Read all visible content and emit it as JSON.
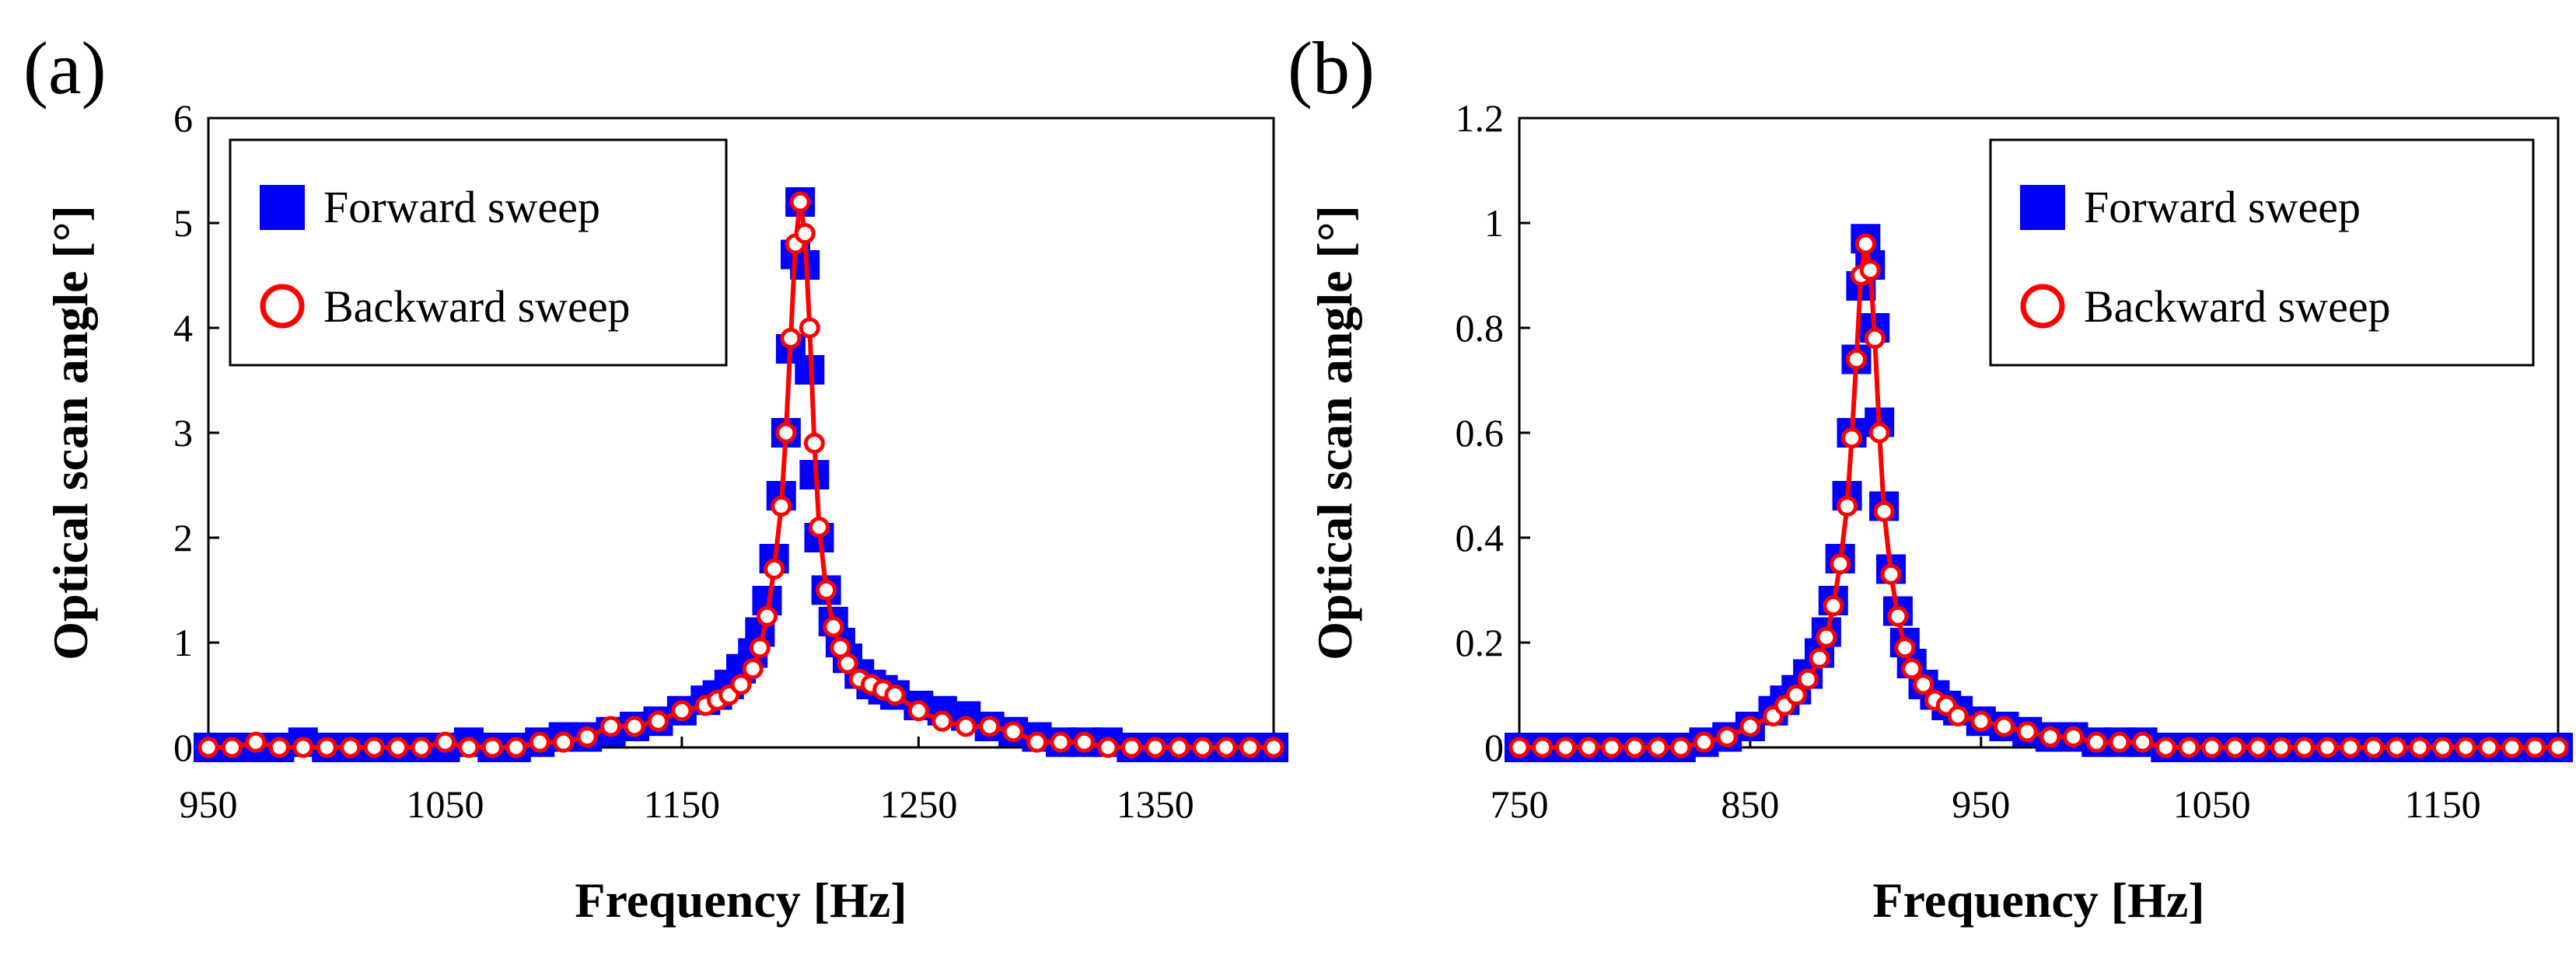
{
  "chart_data": [
    {
      "type": "scatter",
      "panel_label": "(a)",
      "xlabel": "Frequency [Hz]",
      "ylabel": "Optical scan angle [°]",
      "xlim": [
        950,
        1400
      ],
      "ylim": [
        0,
        6
      ],
      "xticks": [
        "950",
        "1050",
        "1150",
        "1250",
        "1350"
      ],
      "xtick_values": [
        950,
        1050,
        1150,
        1250,
        1350
      ],
      "yticks": [
        "0",
        "1",
        "2",
        "3",
        "4",
        "5",
        "6"
      ],
      "ytick_values": [
        0,
        1,
        2,
        3,
        4,
        5,
        6
      ],
      "legend_position": "top-left",
      "series": [
        {
          "name": "Forward sweep",
          "marker": "square",
          "color": "#0000ff",
          "x": [
            950,
            960,
            970,
            980,
            990,
            1000,
            1010,
            1020,
            1030,
            1040,
            1050,
            1060,
            1070,
            1080,
            1090,
            1100,
            1110,
            1120,
            1130,
            1140,
            1150,
            1160,
            1165,
            1170,
            1175,
            1180,
            1183,
            1186,
            1189,
            1192,
            1194,
            1196,
            1198,
            1200,
            1202,
            1204,
            1206,
            1208,
            1211,
            1214,
            1217,
            1220,
            1225,
            1230,
            1235,
            1240,
            1250,
            1260,
            1270,
            1280,
            1290,
            1300,
            1310,
            1320,
            1330,
            1340,
            1350,
            1360,
            1370,
            1380,
            1390,
            1400
          ],
          "y": [
            0,
            0,
            0,
            0,
            0.05,
            0,
            0,
            0,
            0,
            0,
            0,
            0.05,
            0,
            0,
            0.05,
            0.1,
            0.1,
            0.15,
            0.2,
            0.25,
            0.35,
            0.45,
            0.5,
            0.6,
            0.75,
            0.9,
            1.1,
            1.4,
            1.8,
            2.4,
            3.0,
            3.8,
            4.7,
            5.2,
            4.6,
            3.6,
            2.6,
            2.0,
            1.5,
            1.2,
            1.0,
            0.85,
            0.7,
            0.6,
            0.55,
            0.5,
            0.4,
            0.35,
            0.3,
            0.2,
            0.15,
            0.1,
            0.05,
            0.05,
            0.05,
            0,
            0,
            0,
            0,
            0,
            0,
            0
          ]
        },
        {
          "name": "Backward sweep",
          "marker": "circle",
          "color": "#ff0000",
          "x": [
            950,
            960,
            970,
            980,
            990,
            1000,
            1010,
            1020,
            1030,
            1040,
            1050,
            1060,
            1070,
            1080,
            1090,
            1100,
            1110,
            1120,
            1130,
            1140,
            1150,
            1160,
            1165,
            1170,
            1175,
            1180,
            1183,
            1186,
            1189,
            1192,
            1194,
            1196,
            1198,
            1200,
            1202,
            1204,
            1206,
            1208,
            1211,
            1214,
            1217,
            1220,
            1225,
            1230,
            1235,
            1240,
            1250,
            1260,
            1270,
            1280,
            1290,
            1300,
            1310,
            1320,
            1330,
            1340,
            1350,
            1360,
            1370,
            1380,
            1390,
            1400
          ],
          "y": [
            0,
            0,
            0.05,
            0,
            0,
            0,
            0,
            0,
            0,
            0,
            0.05,
            0,
            0,
            0,
            0.05,
            0.05,
            0.1,
            0.2,
            0.2,
            0.25,
            0.35,
            0.4,
            0.45,
            0.5,
            0.6,
            0.75,
            0.95,
            1.25,
            1.7,
            2.3,
            3.0,
            3.9,
            4.8,
            5.2,
            4.9,
            4.0,
            2.9,
            2.1,
            1.5,
            1.15,
            0.95,
            0.8,
            0.65,
            0.6,
            0.55,
            0.5,
            0.35,
            0.25,
            0.2,
            0.2,
            0.15,
            0.05,
            0.05,
            0.05,
            0,
            0,
            0,
            0,
            0,
            0,
            0,
            0
          ]
        }
      ]
    },
    {
      "type": "scatter",
      "panel_label": "(b)",
      "xlabel": "Frequency [Hz]",
      "ylabel": "Optical scan angle [°]",
      "xlim": [
        750,
        1200
      ],
      "ylim": [
        0,
        1.2
      ],
      "xticks": [
        "750",
        "850",
        "950",
        "1050",
        "1150"
      ],
      "xtick_values": [
        750,
        850,
        950,
        1050,
        1150
      ],
      "yticks": [
        "0",
        "0.2",
        "0.4",
        "0.6",
        "0.8",
        "1",
        "1.2"
      ],
      "ytick_values": [
        0,
        0.2,
        0.4,
        0.6,
        0.8,
        1,
        1.2
      ],
      "legend_position": "top-right",
      "series": [
        {
          "name": "Forward sweep",
          "marker": "square",
          "color": "#0000ff",
          "x": [
            750,
            760,
            770,
            780,
            790,
            800,
            810,
            820,
            830,
            840,
            850,
            860,
            865,
            870,
            875,
            880,
            883,
            886,
            889,
            892,
            894,
            896,
            898,
            900,
            902,
            904,
            906,
            908,
            911,
            914,
            917,
            920,
            925,
            930,
            935,
            940,
            950,
            960,
            970,
            980,
            990,
            1000,
            1010,
            1020,
            1030,
            1040,
            1050,
            1060,
            1070,
            1080,
            1090,
            1100,
            1110,
            1120,
            1130,
            1140,
            1150,
            1160,
            1170,
            1180,
            1190,
            1200
          ],
          "y": [
            0,
            0,
            0,
            0,
            0,
            0,
            0,
            0,
            0.01,
            0.02,
            0.04,
            0.07,
            0.09,
            0.11,
            0.14,
            0.18,
            0.22,
            0.28,
            0.36,
            0.48,
            0.6,
            0.74,
            0.88,
            0.97,
            0.92,
            0.8,
            0.62,
            0.46,
            0.34,
            0.26,
            0.2,
            0.16,
            0.12,
            0.1,
            0.08,
            0.07,
            0.05,
            0.04,
            0.03,
            0.02,
            0.02,
            0.01,
            0.01,
            0.01,
            0,
            0,
            0,
            0,
            0,
            0,
            0,
            0,
            0,
            0,
            0,
            0,
            0,
            0,
            0,
            0,
            0,
            0
          ]
        },
        {
          "name": "Backward sweep",
          "marker": "circle",
          "color": "#ff0000",
          "x": [
            750,
            760,
            770,
            780,
            790,
            800,
            810,
            820,
            830,
            840,
            850,
            860,
            865,
            870,
            875,
            880,
            883,
            886,
            889,
            892,
            894,
            896,
            898,
            900,
            902,
            904,
            906,
            908,
            911,
            914,
            917,
            920,
            925,
            930,
            935,
            940,
            950,
            960,
            970,
            980,
            990,
            1000,
            1010,
            1020,
            1030,
            1040,
            1050,
            1060,
            1070,
            1080,
            1090,
            1100,
            1110,
            1120,
            1130,
            1140,
            1150,
            1160,
            1170,
            1180,
            1190,
            1200
          ],
          "y": [
            0,
            0,
            0,
            0,
            0,
            0,
            0,
            0,
            0.01,
            0.02,
            0.04,
            0.06,
            0.08,
            0.1,
            0.13,
            0.17,
            0.21,
            0.27,
            0.35,
            0.46,
            0.59,
            0.74,
            0.9,
            0.96,
            0.91,
            0.78,
            0.6,
            0.45,
            0.33,
            0.25,
            0.19,
            0.15,
            0.12,
            0.09,
            0.08,
            0.06,
            0.05,
            0.04,
            0.03,
            0.02,
            0.02,
            0.01,
            0.01,
            0.01,
            0,
            0,
            0,
            0,
            0,
            0,
            0,
            0,
            0,
            0,
            0,
            0,
            0,
            0,
            0,
            0,
            0,
            0
          ]
        }
      ]
    }
  ]
}
